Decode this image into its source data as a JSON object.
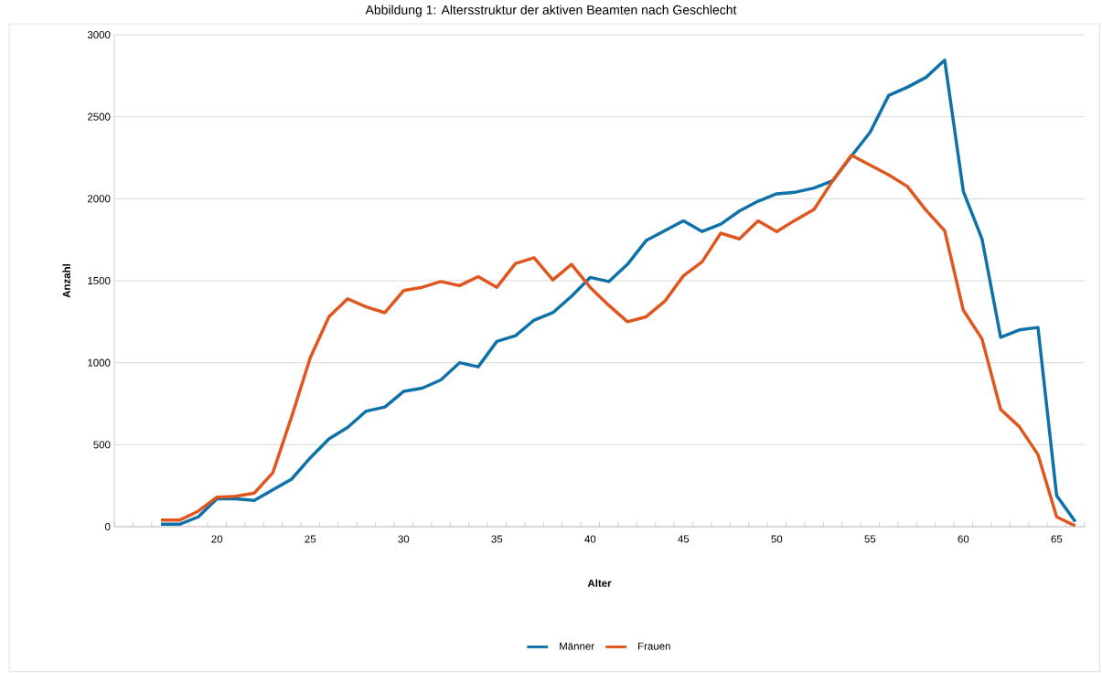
{
  "chart_data": {
    "type": "line",
    "title": "Abbildung 1: Altersstruktur der aktiven Beamten nach Geschlecht",
    "xlabel": "Alter",
    "ylabel": "Anzahl",
    "x": [
      17,
      18,
      19,
      20,
      21,
      22,
      23,
      24,
      25,
      26,
      27,
      28,
      29,
      30,
      31,
      32,
      33,
      34,
      35,
      36,
      37,
      38,
      39,
      40,
      41,
      42,
      43,
      44,
      45,
      46,
      47,
      48,
      49,
      50,
      51,
      52,
      53,
      54,
      55,
      56,
      57,
      58,
      59,
      60,
      61,
      62,
      63,
      64,
      65,
      66
    ],
    "series": [
      {
        "name": "Männer",
        "color": "#0e72a9",
        "values": [
          15,
          15,
          60,
          170,
          170,
          160,
          225,
          290,
          420,
          535,
          605,
          705,
          730,
          825,
          845,
          895,
          1000,
          975,
          1130,
          1165,
          1260,
          1305,
          1405,
          1520,
          1495,
          1600,
          1745,
          1805,
          1865,
          1800,
          1845,
          1925,
          1985,
          2030,
          2040,
          2065,
          2110,
          2260,
          2405,
          2630,
          2680,
          2740,
          2845,
          2045,
          1755,
          1155,
          1200,
          1215,
          190,
          30
        ]
      },
      {
        "name": "Frauen",
        "color": "#e0561f",
        "values": [
          40,
          40,
          95,
          180,
          185,
          205,
          330,
          670,
          1030,
          1280,
          1390,
          1340,
          1305,
          1440,
          1460,
          1495,
          1470,
          1525,
          1460,
          1605,
          1640,
          1505,
          1600,
          1460,
          1350,
          1250,
          1280,
          1375,
          1530,
          1615,
          1790,
          1755,
          1865,
          1800,
          1870,
          1935,
          2110,
          2265,
          2205,
          2145,
          2075,
          1930,
          1805,
          1320,
          1145,
          715,
          610,
          440,
          60,
          5
        ]
      }
    ],
    "xlim": [
      14.5,
      66.5
    ],
    "xticks": [
      20,
      25,
      30,
      35,
      40,
      45,
      50,
      55,
      60,
      65
    ],
    "ylim": [
      0,
      3000
    ],
    "yticks": [
      0,
      500,
      1000,
      1500,
      2000,
      2500,
      3000
    ],
    "grid": "y",
    "legend": "bottom",
    "marker": "none",
    "line_style": "solid"
  }
}
